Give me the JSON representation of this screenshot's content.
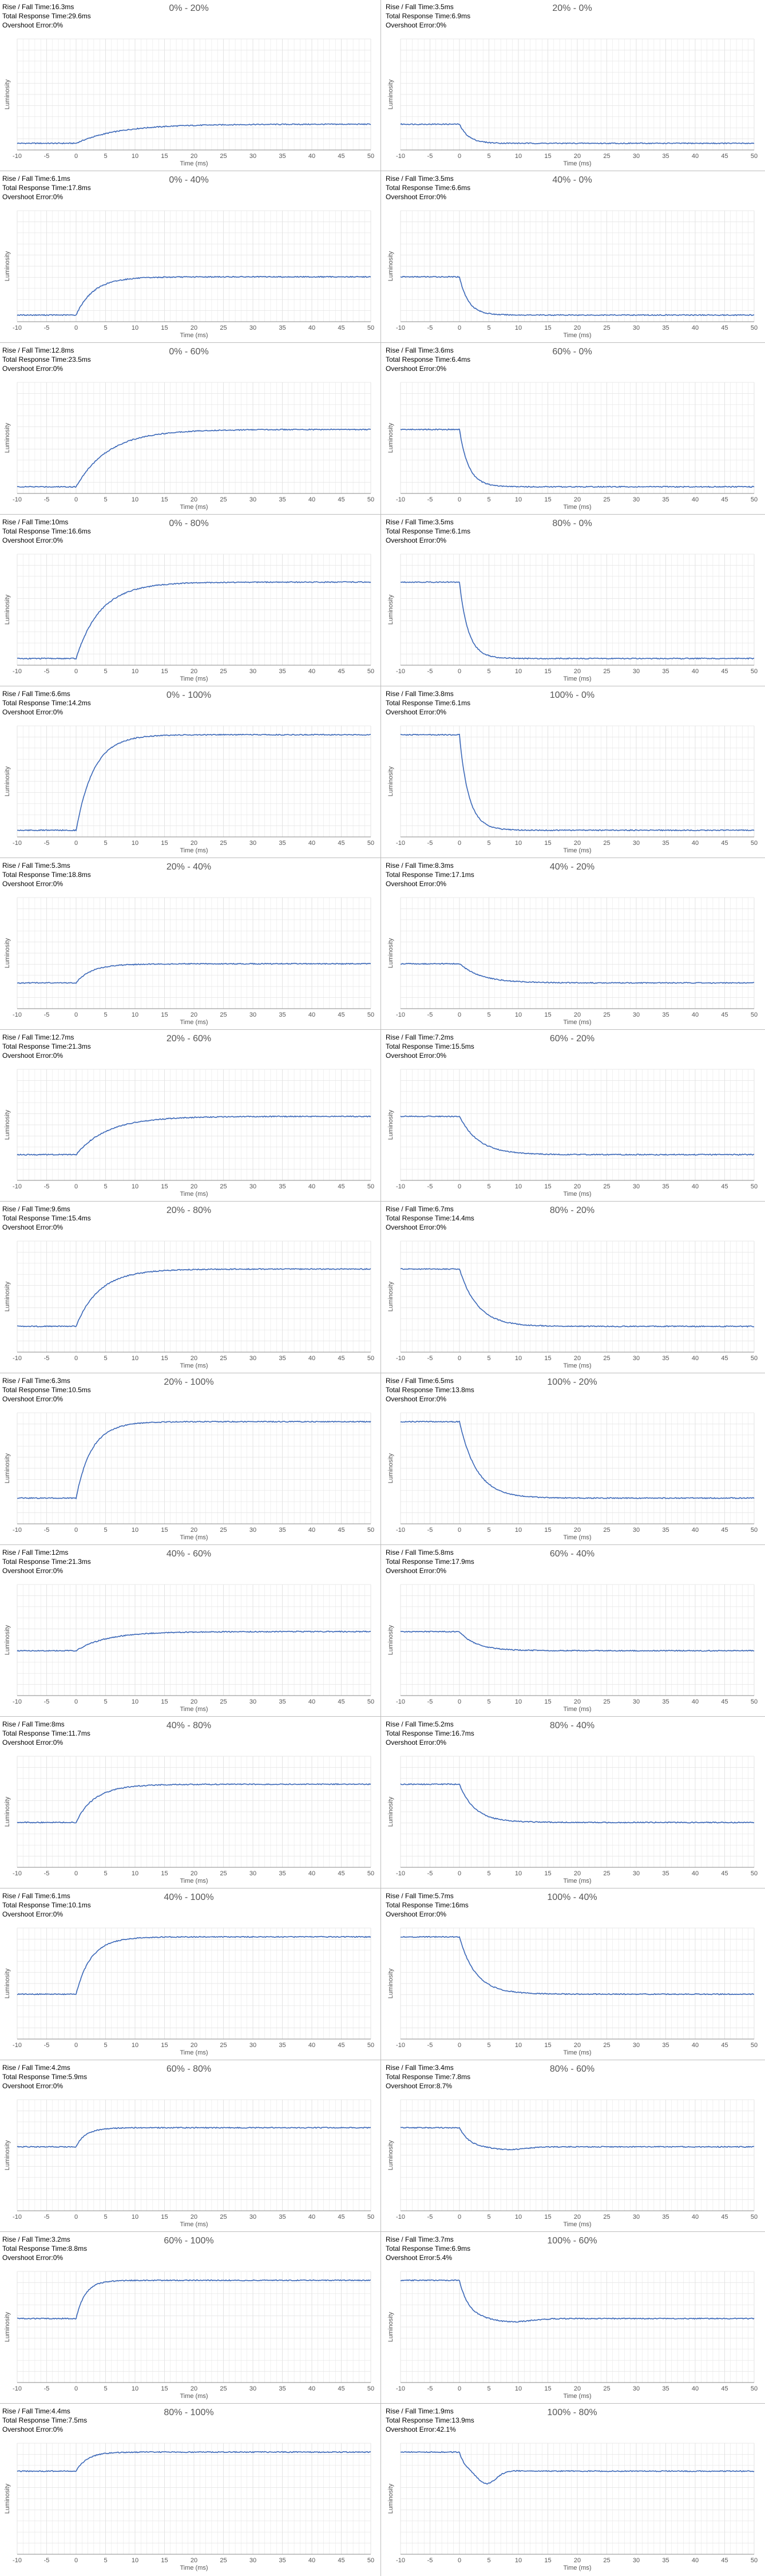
{
  "labels": {
    "rise_fall": "Rise / Fall Time:",
    "total": "Total Response Time:",
    "overshoot": "Overshoot Error:",
    "xlabel": "Time (ms)",
    "ylabel": "Luminosity"
  },
  "colors": {
    "line": "#3a67b8",
    "grid": "#e3e3e3",
    "axis": "#888888",
    "text": "#555555"
  },
  "chart_data": [
    {
      "type": "line",
      "title": "0% - 20%",
      "direction": "rise",
      "rise_fall": "16.3ms",
      "total": "29.6ms",
      "overshoot": "0%",
      "xlim": [
        -10,
        50
      ],
      "xticks": [
        -10,
        -5,
        0,
        5,
        10,
        15,
        20,
        25,
        30,
        35,
        40,
        45,
        50
      ],
      "xlabel": "Time (ms)",
      "ylabel": "Luminosity"
    },
    {
      "type": "line",
      "title": "20% - 0%",
      "direction": "fall",
      "rise_fall": "3.5ms",
      "total": "6.9ms",
      "overshoot": "0%",
      "xlim": [
        -10,
        50
      ],
      "xticks": [
        -10,
        -5,
        0,
        5,
        10,
        15,
        20,
        25,
        30,
        35,
        40,
        45,
        50
      ],
      "xlabel": "Time (ms)",
      "ylabel": "Luminosity"
    },
    {
      "type": "line",
      "title": "0% - 40%",
      "direction": "rise",
      "rise_fall": "6.1ms",
      "total": "17.8ms",
      "overshoot": "0%",
      "xlim": [
        -10,
        50
      ],
      "xticks": [
        -10,
        -5,
        0,
        5,
        10,
        15,
        20,
        25,
        30,
        35,
        40,
        45,
        50
      ],
      "xlabel": "Time (ms)",
      "ylabel": "Luminosity"
    },
    {
      "type": "line",
      "title": "40% - 0%",
      "direction": "fall",
      "rise_fall": "3.5ms",
      "total": "6.6ms",
      "overshoot": "0%",
      "xlim": [
        -10,
        50
      ],
      "xticks": [
        -10,
        -5,
        0,
        5,
        10,
        15,
        20,
        25,
        30,
        35,
        40,
        45,
        50
      ],
      "xlabel": "Time (ms)",
      "ylabel": "Luminosity"
    },
    {
      "type": "line",
      "title": "0% - 60%",
      "direction": "rise",
      "rise_fall": "12.8ms",
      "total": "23.5ms",
      "overshoot": "0%",
      "xlim": [
        -10,
        50
      ],
      "xticks": [
        -10,
        -5,
        0,
        5,
        10,
        15,
        20,
        25,
        30,
        35,
        40,
        45,
        50
      ],
      "xlabel": "Time (ms)",
      "ylabel": "Luminosity"
    },
    {
      "type": "line",
      "title": "60% - 0%",
      "direction": "fall",
      "rise_fall": "3.6ms",
      "total": "6.4ms",
      "overshoot": "0%",
      "xlim": [
        -10,
        50
      ],
      "xticks": [
        -10,
        -5,
        0,
        5,
        10,
        15,
        20,
        25,
        30,
        35,
        40,
        45,
        50
      ],
      "xlabel": "Time (ms)",
      "ylabel": "Luminosity"
    },
    {
      "type": "line",
      "title": "0% - 80%",
      "direction": "rise",
      "rise_fall": "10ms",
      "total": "16.6ms",
      "overshoot": "0%",
      "xlim": [
        -10,
        50
      ],
      "xticks": [
        -10,
        -5,
        0,
        5,
        10,
        15,
        20,
        25,
        30,
        35,
        40,
        45,
        50
      ],
      "xlabel": "Time (ms)",
      "ylabel": "Luminosity"
    },
    {
      "type": "line",
      "title": "80% - 0%",
      "direction": "fall",
      "rise_fall": "3.5ms",
      "total": "6.1ms",
      "overshoot": "0%",
      "xlim": [
        -10,
        50
      ],
      "xticks": [
        -10,
        -5,
        0,
        5,
        10,
        15,
        20,
        25,
        30,
        35,
        40,
        45,
        50
      ],
      "xlabel": "Time (ms)",
      "ylabel": "Luminosity"
    },
    {
      "type": "line",
      "title": "0% - 100%",
      "direction": "rise",
      "rise_fall": "6.6ms",
      "total": "14.2ms",
      "overshoot": "0%",
      "xlim": [
        -10,
        50
      ],
      "xticks": [
        -10,
        -5,
        0,
        5,
        10,
        15,
        20,
        25,
        30,
        35,
        40,
        45,
        50
      ],
      "xlabel": "Time (ms)",
      "ylabel": "Luminosity"
    },
    {
      "type": "line",
      "title": "100% - 0%",
      "direction": "fall",
      "rise_fall": "3.8ms",
      "total": "6.1ms",
      "overshoot": "0%",
      "xlim": [
        -10,
        50
      ],
      "xticks": [
        -10,
        -5,
        0,
        5,
        10,
        15,
        20,
        25,
        30,
        35,
        40,
        45,
        50
      ],
      "xlabel": "Time (ms)",
      "ylabel": "Luminosity"
    },
    {
      "type": "line",
      "title": "20% - 40%",
      "direction": "rise",
      "rise_fall": "5.3ms",
      "total": "18.8ms",
      "overshoot": "0%",
      "xlim": [
        -10,
        50
      ],
      "xticks": [
        -10,
        -5,
        0,
        5,
        10,
        15,
        20,
        25,
        30,
        35,
        40,
        45,
        50
      ],
      "xlabel": "Time (ms)",
      "ylabel": "Luminosity"
    },
    {
      "type": "line",
      "title": "40% - 20%",
      "direction": "fall",
      "rise_fall": "8.3ms",
      "total": "17.1ms",
      "overshoot": "0%",
      "xlim": [
        -10,
        50
      ],
      "xticks": [
        -10,
        -5,
        0,
        5,
        10,
        15,
        20,
        25,
        30,
        35,
        40,
        45,
        50
      ],
      "xlabel": "Time (ms)",
      "ylabel": "Luminosity"
    },
    {
      "type": "line",
      "title": "20% - 60%",
      "direction": "rise",
      "rise_fall": "12.7ms",
      "total": "21.3ms",
      "overshoot": "0%",
      "xlim": [
        -10,
        50
      ],
      "xticks": [
        -10,
        -5,
        0,
        5,
        10,
        15,
        20,
        25,
        30,
        35,
        40,
        45,
        50
      ],
      "xlabel": "Time (ms)",
      "ylabel": "Luminosity"
    },
    {
      "type": "line",
      "title": "60% - 20%",
      "direction": "fall",
      "rise_fall": "7.2ms",
      "total": "15.5ms",
      "overshoot": "0%",
      "xlim": [
        -10,
        50
      ],
      "xticks": [
        -10,
        -5,
        0,
        5,
        10,
        15,
        20,
        25,
        30,
        35,
        40,
        45,
        50
      ],
      "xlabel": "Time (ms)",
      "ylabel": "Luminosity"
    },
    {
      "type": "line",
      "title": "20% - 80%",
      "direction": "rise",
      "rise_fall": "9.6ms",
      "total": "15.4ms",
      "overshoot": "0%",
      "xlim": [
        -10,
        50
      ],
      "xticks": [
        -10,
        -5,
        0,
        5,
        10,
        15,
        20,
        25,
        30,
        35,
        40,
        45,
        50
      ],
      "xlabel": "Time (ms)",
      "ylabel": "Luminosity"
    },
    {
      "type": "line",
      "title": "80% - 20%",
      "direction": "fall",
      "rise_fall": "6.7ms",
      "total": "14.4ms",
      "overshoot": "0%",
      "xlim": [
        -10,
        50
      ],
      "xticks": [
        -10,
        -5,
        0,
        5,
        10,
        15,
        20,
        25,
        30,
        35,
        40,
        45,
        50
      ],
      "xlabel": "Time (ms)",
      "ylabel": "Luminosity"
    },
    {
      "type": "line",
      "title": "20% - 100%",
      "direction": "rise",
      "rise_fall": "6.3ms",
      "total": "10.5ms",
      "overshoot": "0%",
      "xlim": [
        -10,
        50
      ],
      "xticks": [
        -10,
        -5,
        0,
        5,
        10,
        15,
        20,
        25,
        30,
        35,
        40,
        45,
        50
      ],
      "xlabel": "Time (ms)",
      "ylabel": "Luminosity"
    },
    {
      "type": "line",
      "title": "100% - 20%",
      "direction": "fall",
      "rise_fall": "6.5ms",
      "total": "13.8ms",
      "overshoot": "0%",
      "xlim": [
        -10,
        50
      ],
      "xticks": [
        -10,
        -5,
        0,
        5,
        10,
        15,
        20,
        25,
        30,
        35,
        40,
        45,
        50
      ],
      "xlabel": "Time (ms)",
      "ylabel": "Luminosity"
    },
    {
      "type": "line",
      "title": "40% - 60%",
      "direction": "rise",
      "rise_fall": "12ms",
      "total": "21.3ms",
      "overshoot": "0%",
      "xlim": [
        -10,
        50
      ],
      "xticks": [
        -10,
        -5,
        0,
        5,
        10,
        15,
        20,
        25,
        30,
        35,
        40,
        45,
        50
      ],
      "xlabel": "Time (ms)",
      "ylabel": "Luminosity"
    },
    {
      "type": "line",
      "title": "60% - 40%",
      "direction": "fall",
      "rise_fall": "5.8ms",
      "total": "17.9ms",
      "overshoot": "0%",
      "xlim": [
        -10,
        50
      ],
      "xticks": [
        -10,
        -5,
        0,
        5,
        10,
        15,
        20,
        25,
        30,
        35,
        40,
        45,
        50
      ],
      "xlabel": "Time (ms)",
      "ylabel": "Luminosity"
    },
    {
      "type": "line",
      "title": "40% - 80%",
      "direction": "rise",
      "rise_fall": "8ms",
      "total": "11.7ms",
      "overshoot": "0%",
      "xlim": [
        -10,
        50
      ],
      "xticks": [
        -10,
        -5,
        0,
        5,
        10,
        15,
        20,
        25,
        30,
        35,
        40,
        45,
        50
      ],
      "xlabel": "Time (ms)",
      "ylabel": "Luminosity"
    },
    {
      "type": "line",
      "title": "80% - 40%",
      "direction": "fall",
      "rise_fall": "5.2ms",
      "total": "16.7ms",
      "overshoot": "0%",
      "xlim": [
        -10,
        50
      ],
      "xticks": [
        -10,
        -5,
        0,
        5,
        10,
        15,
        20,
        25,
        30,
        35,
        40,
        45,
        50
      ],
      "xlabel": "Time (ms)",
      "ylabel": "Luminosity"
    },
    {
      "type": "line",
      "title": "40% - 100%",
      "direction": "rise",
      "rise_fall": "6.1ms",
      "total": "10.1ms",
      "overshoot": "0%",
      "xlim": [
        -10,
        50
      ],
      "xticks": [
        -10,
        -5,
        0,
        5,
        10,
        15,
        20,
        25,
        30,
        35,
        40,
        45,
        50
      ],
      "xlabel": "Time (ms)",
      "ylabel": "Luminosity"
    },
    {
      "type": "line",
      "title": "100% - 40%",
      "direction": "fall",
      "rise_fall": "5.7ms",
      "total": "16ms",
      "overshoot": "0%",
      "xlim": [
        -10,
        50
      ],
      "xticks": [
        -10,
        -5,
        0,
        5,
        10,
        15,
        20,
        25,
        30,
        35,
        40,
        45,
        50
      ],
      "xlabel": "Time (ms)",
      "ylabel": "Luminosity"
    },
    {
      "type": "line",
      "title": "60% - 80%",
      "direction": "rise",
      "rise_fall": "4.2ms",
      "total": "5.9ms",
      "overshoot": "0%",
      "xlim": [
        -10,
        50
      ],
      "xticks": [
        -10,
        -5,
        0,
        5,
        10,
        15,
        20,
        25,
        30,
        35,
        40,
        45,
        50
      ],
      "xlabel": "Time (ms)",
      "ylabel": "Luminosity"
    },
    {
      "type": "line",
      "title": "80% - 60%",
      "direction": "fall",
      "rise_fall": "3.4ms",
      "total": "7.8ms",
      "overshoot": "8.7%",
      "xlim": [
        -10,
        50
      ],
      "xticks": [
        -10,
        -5,
        0,
        5,
        10,
        15,
        20,
        25,
        30,
        35,
        40,
        45,
        50
      ],
      "xlabel": "Time (ms)",
      "ylabel": "Luminosity"
    },
    {
      "type": "line",
      "title": "60% - 100%",
      "direction": "rise",
      "rise_fall": "3.2ms",
      "total": "8.8ms",
      "overshoot": "0%",
      "xlim": [
        -10,
        50
      ],
      "xticks": [
        -10,
        -5,
        0,
        5,
        10,
        15,
        20,
        25,
        30,
        35,
        40,
        45,
        50
      ],
      "xlabel": "Time (ms)",
      "ylabel": "Luminosity"
    },
    {
      "type": "line",
      "title": "100% - 60%",
      "direction": "fall",
      "rise_fall": "3.7ms",
      "total": "6.9ms",
      "overshoot": "5.4%",
      "xlim": [
        -10,
        50
      ],
      "xticks": [
        -10,
        -5,
        0,
        5,
        10,
        15,
        20,
        25,
        30,
        35,
        40,
        45,
        50
      ],
      "xlabel": "Time (ms)",
      "ylabel": "Luminosity"
    },
    {
      "type": "line",
      "title": "80% - 100%",
      "direction": "rise",
      "rise_fall": "4.4ms",
      "total": "7.5ms",
      "overshoot": "0%",
      "xlim": [
        -10,
        50
      ],
      "xticks": [
        -10,
        -5,
        0,
        5,
        10,
        15,
        20,
        25,
        30,
        35,
        40,
        45,
        50
      ],
      "xlabel": "Time (ms)",
      "ylabel": "Luminosity"
    },
    {
      "type": "line",
      "title": "100% - 80%",
      "direction": "fall",
      "rise_fall": "1.9ms",
      "total": "13.9ms",
      "overshoot": "42.1%",
      "xlim": [
        -10,
        50
      ],
      "xticks": [
        -10,
        -5,
        0,
        5,
        10,
        15,
        20,
        25,
        30,
        35,
        40,
        45,
        50
      ],
      "xlabel": "Time (ms)",
      "ylabel": "Luminosity"
    }
  ]
}
